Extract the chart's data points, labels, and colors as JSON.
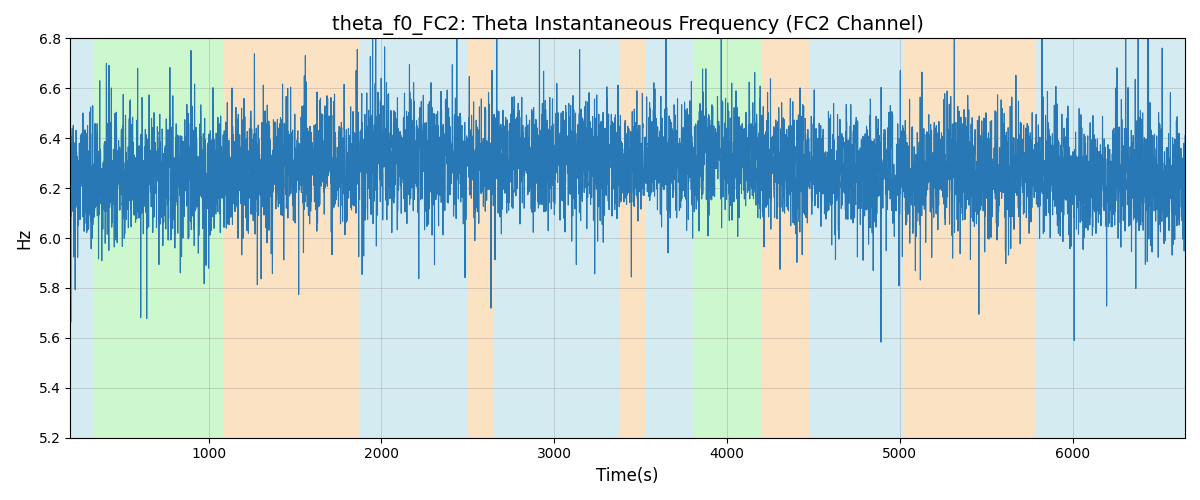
{
  "title": "theta_f0_FC2: Theta Instantaneous Frequency (FC2 Channel)",
  "xlabel": "Time(s)",
  "ylabel": "Hz",
  "ylim": [
    5.2,
    6.8
  ],
  "xlim": [
    200,
    6650
  ],
  "title_fontsize": 14,
  "label_fontsize": 12,
  "line_color": "#2878b5",
  "line_width": 0.8,
  "bg_regions": [
    {
      "xmin": 200,
      "xmax": 330,
      "color": "#add8e6",
      "alpha": 0.5
    },
    {
      "xmin": 330,
      "xmax": 1090,
      "color": "#90ee90",
      "alpha": 0.45
    },
    {
      "xmin": 1090,
      "xmax": 1870,
      "color": "#f4c07a",
      "alpha": 0.45
    },
    {
      "xmin": 1870,
      "xmax": 2500,
      "color": "#add8e6",
      "alpha": 0.5
    },
    {
      "xmin": 2500,
      "xmax": 2650,
      "color": "#f4c07a",
      "alpha": 0.45
    },
    {
      "xmin": 2650,
      "xmax": 3380,
      "color": "#add8e6",
      "alpha": 0.5
    },
    {
      "xmin": 3380,
      "xmax": 3530,
      "color": "#f4c07a",
      "alpha": 0.45
    },
    {
      "xmin": 3530,
      "xmax": 3800,
      "color": "#add8e6",
      "alpha": 0.5
    },
    {
      "xmin": 3800,
      "xmax": 4200,
      "color": "#90ee90",
      "alpha": 0.45
    },
    {
      "xmin": 4200,
      "xmax": 4480,
      "color": "#f4c07a",
      "alpha": 0.45
    },
    {
      "xmin": 4480,
      "xmax": 5020,
      "color": "#add8e6",
      "alpha": 0.5
    },
    {
      "xmin": 5020,
      "xmax": 5780,
      "color": "#f4c07a",
      "alpha": 0.45
    },
    {
      "xmin": 5780,
      "xmax": 6650,
      "color": "#add8e6",
      "alpha": 0.5
    }
  ],
  "seed": 42,
  "n_points": 6500,
  "t_start": 200,
  "t_end": 6650
}
